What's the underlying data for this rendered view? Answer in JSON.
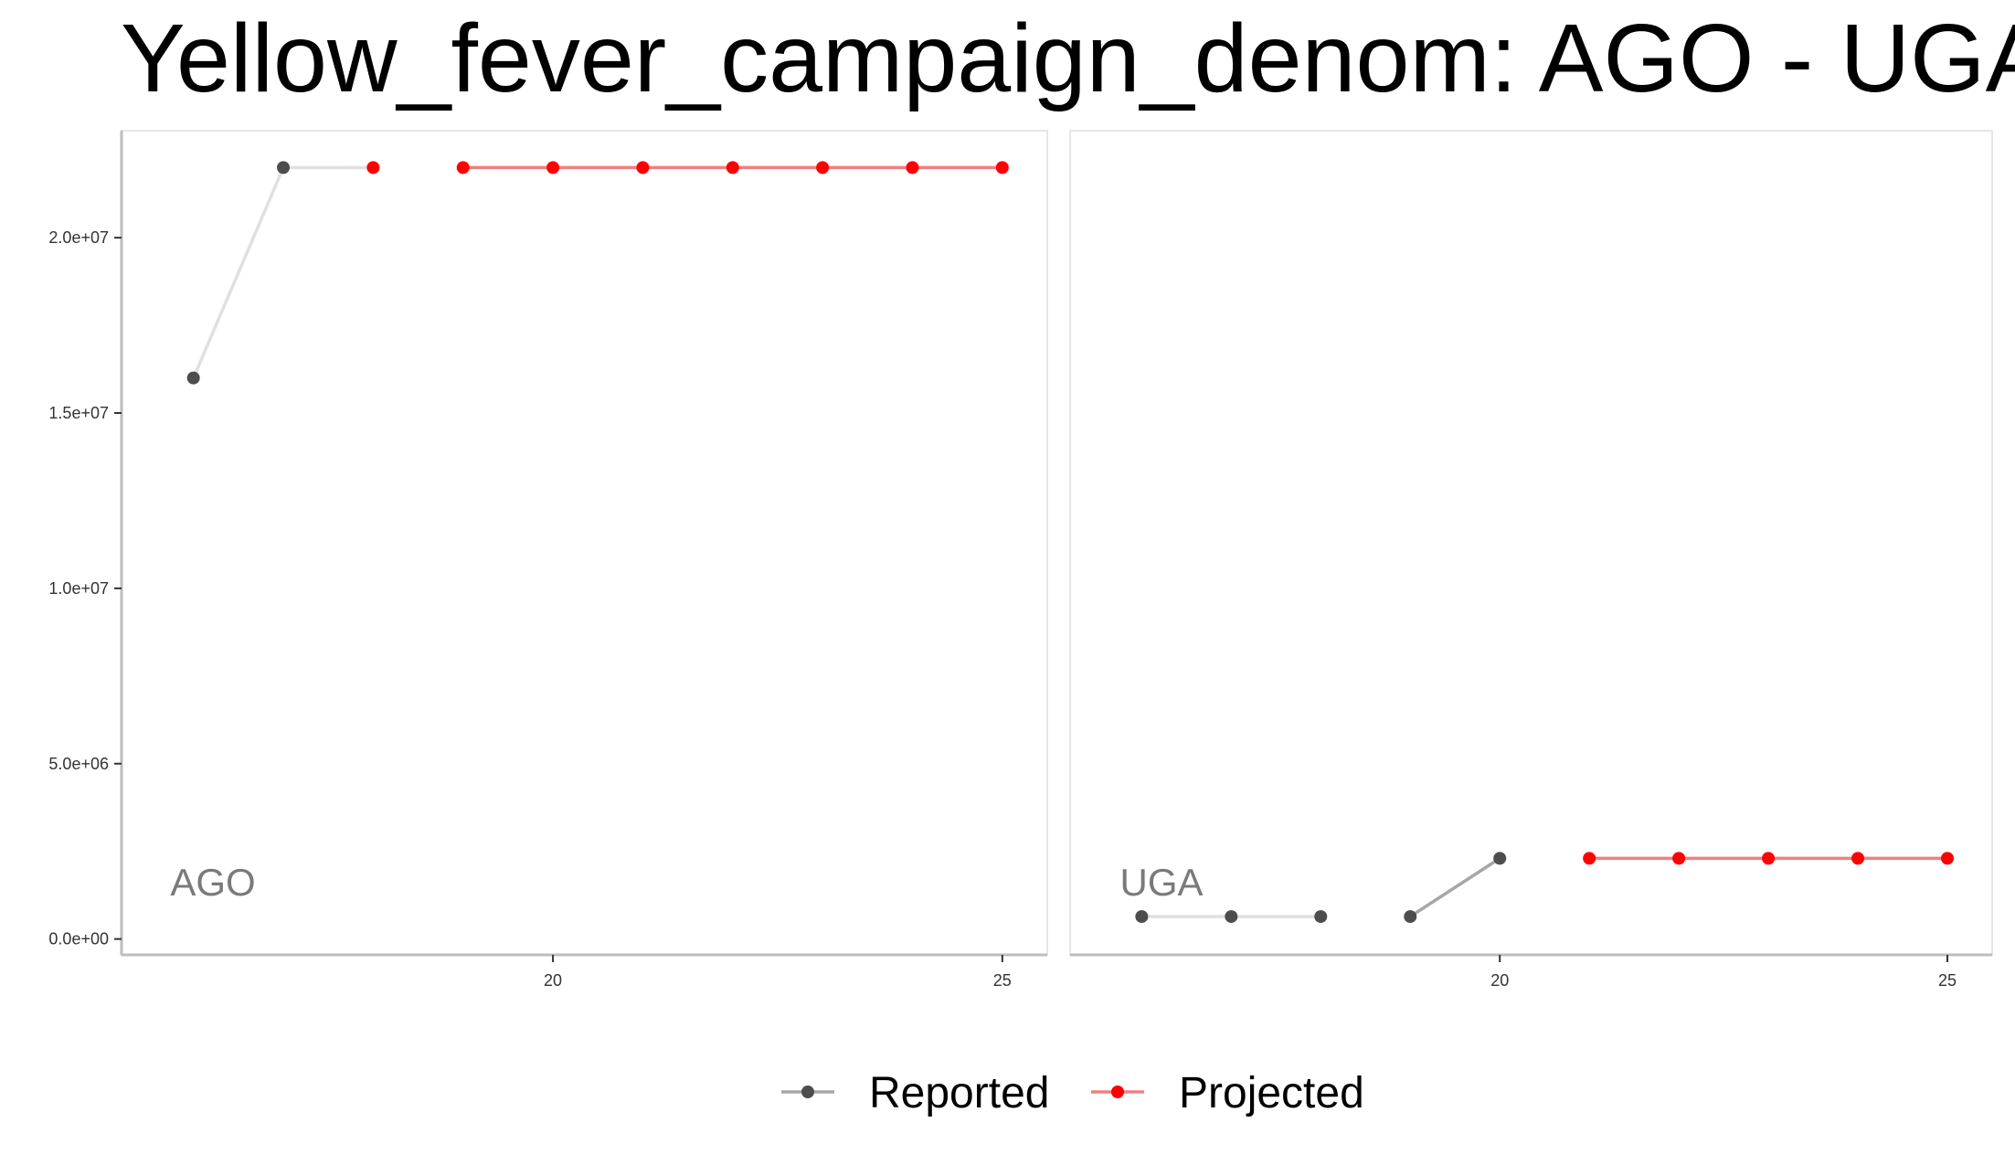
{
  "chart_data": {
    "type": "line",
    "title": "Yellow_fever_campaign_denom: AGO - UGA",
    "xlabel": "",
    "ylabel": "",
    "x_ticks": [
      20,
      25
    ],
    "xlim": [
      15.2,
      25.5
    ],
    "y_ticks": [
      0,
      5000000,
      10000000,
      15000000,
      20000000
    ],
    "y_tick_labels": [
      "0.0e+00",
      "5.0e+06",
      "1.0e+07",
      "1.5e+07",
      "2.0e+07"
    ],
    "ylim": [
      -400000,
      23000000
    ],
    "grid": false,
    "legend_position": "bottom",
    "colors": {
      "reported_point": "#4d4d4d",
      "reported_line_light": "#e0e0e0",
      "reported_line_dark": "#a6a6a6",
      "projected_point": "#ff0000",
      "projected_line": "#f08080"
    },
    "legend": [
      {
        "label": "Reported",
        "series": "reported"
      },
      {
        "label": "Projected",
        "series": "projected"
      }
    ],
    "panels": [
      {
        "label": "AGO",
        "reported": {
          "x": [
            16,
            17
          ],
          "y": [
            16000000,
            22000000
          ]
        },
        "projected": {
          "x": [
            18,
            19,
            20,
            21,
            22,
            23,
            24,
            25
          ],
          "y": [
            22000000,
            22000000,
            22000000,
            22000000,
            22000000,
            22000000,
            22000000,
            22000000
          ]
        },
        "line_segments": [
          {
            "x": [
              16,
              17
            ],
            "y": [
              16000000,
              22000000
            ],
            "color": "reported_line_light"
          },
          {
            "x": [
              17,
              18
            ],
            "y": [
              22000000,
              22000000
            ],
            "color": "reported_line_light"
          },
          {
            "x": [
              19,
              25
            ],
            "y": [
              22000000,
              22000000
            ],
            "color": "projected_line"
          }
        ]
      },
      {
        "label": "UGA",
        "reported": {
          "x": [
            16,
            17,
            18,
            19,
            20
          ],
          "y": [
            640000,
            640000,
            640000,
            640000,
            2300000
          ]
        },
        "projected": {
          "x": [
            21,
            22,
            23,
            24,
            25
          ],
          "y": [
            2300000,
            2300000,
            2300000,
            2300000,
            2300000
          ]
        },
        "line_segments": [
          {
            "x": [
              16,
              18
            ],
            "y": [
              640000,
              640000
            ],
            "color": "reported_line_light"
          },
          {
            "x": [
              19,
              20
            ],
            "y": [
              640000,
              2300000
            ],
            "color": "reported_line_dark"
          },
          {
            "x": [
              21,
              25
            ],
            "y": [
              2300000,
              2300000
            ],
            "color": "projected_line"
          }
        ]
      }
    ]
  }
}
